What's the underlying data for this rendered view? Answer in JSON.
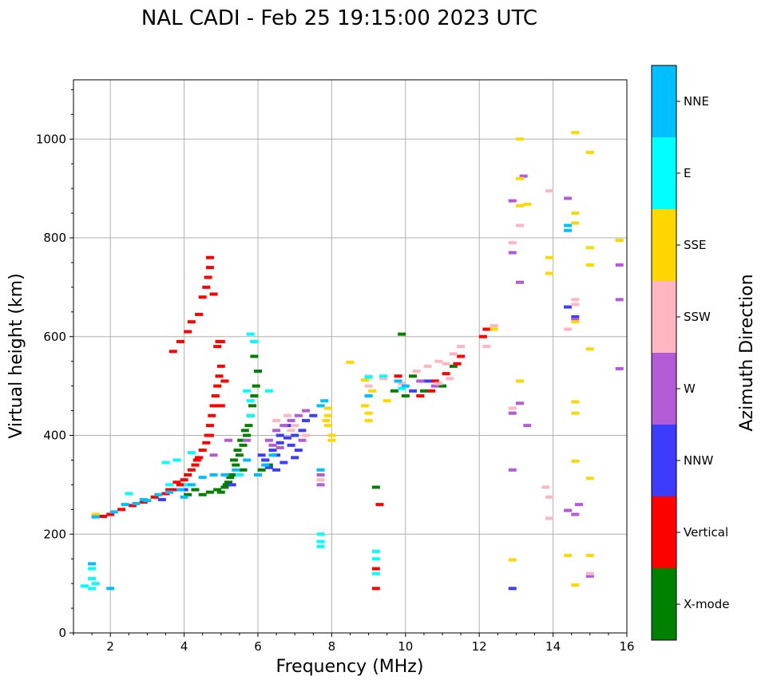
{
  "chart_data": {
    "type": "scatter",
    "title": "NAL CADI - Feb 25 19:15:00 2023 UTC",
    "xlabel": "Frequency (MHz)",
    "ylabel": "Virtual height (km)",
    "xlim": [
      1,
      16
    ],
    "ylim": [
      0,
      1120
    ],
    "xticks": [
      "2",
      "4",
      "6",
      "8",
      "10",
      "12",
      "14",
      "16"
    ],
    "xtick_values": [
      2,
      4,
      6,
      8,
      10,
      12,
      14,
      16
    ],
    "yticks": [
      "0",
      "200",
      "400",
      "600",
      "800",
      "1000"
    ],
    "ytick_values": [
      0,
      200,
      400,
      600,
      800,
      1000
    ],
    "grid": true,
    "colorbar": {
      "label": "Azimuth Direction",
      "categories": [
        "X-mode",
        "Vertical",
        "NNW",
        "W",
        "SSW",
        "SSE",
        "E",
        "NNE"
      ],
      "colors": [
        "#008000",
        "#ff0000",
        "#3c3cff",
        "#b35ad6",
        "#ffb6c1",
        "#ffd700",
        "#00ffff",
        "#00bfff"
      ]
    },
    "series": [
      {
        "name": "X-mode",
        "points": [
          [
            5.0,
            285
          ],
          [
            5.1,
            295
          ],
          [
            5.2,
            305
          ],
          [
            5.3,
            320
          ],
          [
            5.4,
            340
          ],
          [
            5.5,
            360
          ],
          [
            5.6,
            380
          ],
          [
            5.7,
            400
          ],
          [
            5.75,
            420
          ],
          [
            5.8,
            440
          ],
          [
            5.85,
            460
          ],
          [
            5.9,
            480
          ],
          [
            5.95,
            500
          ],
          [
            6.0,
            530
          ],
          [
            5.9,
            560
          ],
          [
            5.9,
            590
          ],
          [
            4.5,
            280
          ],
          [
            4.7,
            285
          ],
          [
            4.9,
            290
          ],
          [
            5.6,
            330
          ],
          [
            6.0,
            320
          ],
          [
            6.1,
            330
          ],
          [
            5.35,
            350
          ],
          [
            5.45,
            370
          ],
          [
            5.55,
            390
          ],
          [
            5.65,
            410
          ],
          [
            10.0,
            480
          ],
          [
            10.2,
            520
          ],
          [
            10.5,
            490
          ],
          [
            11.0,
            500
          ],
          [
            11.3,
            540
          ],
          [
            9.7,
            490
          ],
          [
            9.2,
            295
          ],
          [
            6.2,
            350
          ],
          [
            6.3,
            340
          ],
          [
            5.25,
            315
          ],
          [
            5.15,
            300
          ],
          [
            9.9,
            605
          ],
          [
            4.3,
            290
          ],
          [
            4.1,
            280
          ]
        ]
      },
      {
        "name": "Vertical",
        "points": [
          [
            1.6,
            235
          ],
          [
            1.8,
            236
          ],
          [
            2.0,
            240
          ],
          [
            2.3,
            250
          ],
          [
            2.6,
            258
          ],
          [
            2.9,
            265
          ],
          [
            3.2,
            275
          ],
          [
            3.5,
            282
          ],
          [
            3.7,
            290
          ],
          [
            3.9,
            300
          ],
          [
            4.0,
            310
          ],
          [
            4.1,
            320
          ],
          [
            4.2,
            330
          ],
          [
            4.3,
            340
          ],
          [
            4.4,
            355
          ],
          [
            4.5,
            370
          ],
          [
            4.6,
            385
          ],
          [
            4.65,
            400
          ],
          [
            4.7,
            420
          ],
          [
            4.75,
            440
          ],
          [
            4.8,
            460
          ],
          [
            4.85,
            480
          ],
          [
            4.9,
            500
          ],
          [
            4.95,
            520
          ],
          [
            5.0,
            540
          ],
          [
            4.9,
            580
          ],
          [
            4.95,
            590
          ],
          [
            4.1,
            610
          ],
          [
            4.2,
            630
          ],
          [
            3.9,
            590
          ],
          [
            3.7,
            570
          ],
          [
            4.5,
            680
          ],
          [
            4.6,
            700
          ],
          [
            4.65,
            720
          ],
          [
            4.7,
            740
          ],
          [
            4.7,
            760
          ],
          [
            4.4,
            645
          ],
          [
            4.8,
            686
          ],
          [
            5.0,
            590
          ],
          [
            5.1,
            510
          ],
          [
            5.0,
            460
          ],
          [
            4.7,
            400
          ],
          [
            4.35,
            350
          ],
          [
            3.8,
            305
          ],
          [
            3.6,
            290
          ],
          [
            10.4,
            480
          ],
          [
            10.8,
            510
          ],
          [
            11.1,
            525
          ],
          [
            11.4,
            545
          ],
          [
            11.5,
            560
          ],
          [
            10.7,
            490
          ],
          [
            9.2,
            90
          ],
          [
            9.2,
            130
          ],
          [
            9.3,
            260
          ],
          [
            12.1,
            600
          ],
          [
            12.2,
            615
          ],
          [
            9.8,
            520
          ]
        ]
      },
      {
        "name": "NNW",
        "points": [
          [
            6.2,
            350
          ],
          [
            6.4,
            370
          ],
          [
            6.6,
            385
          ],
          [
            6.8,
            395
          ],
          [
            7.0,
            400
          ],
          [
            7.2,
            410
          ],
          [
            6.5,
            360
          ],
          [
            6.7,
            345
          ],
          [
            6.9,
            380
          ],
          [
            7.1,
            370
          ],
          [
            6.3,
            335
          ],
          [
            6.6,
            400
          ],
          [
            6.8,
            420
          ],
          [
            7.3,
            430
          ],
          [
            6.1,
            360
          ],
          [
            6.5,
            330
          ],
          [
            7.0,
            355
          ],
          [
            7.5,
            440
          ],
          [
            10.2,
            490
          ],
          [
            10.6,
            510
          ],
          [
            12.9,
            90
          ],
          [
            14.4,
            660
          ],
          [
            14.6,
            640
          ],
          [
            5.3,
            300
          ],
          [
            4.0,
            290
          ],
          [
            3.4,
            270
          ]
        ]
      },
      {
        "name": "W",
        "points": [
          [
            6.3,
            390
          ],
          [
            6.5,
            410
          ],
          [
            6.7,
            420
          ],
          [
            6.9,
            430
          ],
          [
            7.1,
            440
          ],
          [
            7.3,
            450
          ],
          [
            6.4,
            380
          ],
          [
            6.6,
            375
          ],
          [
            7.2,
            390
          ],
          [
            7.7,
            300
          ],
          [
            7.7,
            320
          ],
          [
            10.4,
            510
          ],
          [
            10.8,
            500
          ],
          [
            12.9,
            445
          ],
          [
            12.9,
            875
          ],
          [
            13.1,
            710
          ],
          [
            13.3,
            420
          ],
          [
            13.2,
            925
          ],
          [
            14.4,
            880
          ],
          [
            14.7,
            260
          ],
          [
            14.6,
            635
          ],
          [
            15.0,
            115
          ],
          [
            15.8,
            745
          ],
          [
            15.8,
            675
          ],
          [
            15.8,
            535
          ],
          [
            12.9,
            330
          ],
          [
            12.9,
            770
          ],
          [
            13.1,
            465
          ],
          [
            14.4,
            248
          ],
          [
            14.6,
            240
          ],
          [
            5.7,
            390
          ],
          [
            5.2,
            390
          ],
          [
            4.8,
            360
          ]
        ]
      },
      {
        "name": "SSW",
        "points": [
          [
            6.5,
            430
          ],
          [
            6.8,
            440
          ],
          [
            7.0,
            420
          ],
          [
            6.9,
            410
          ],
          [
            7.3,
            400
          ],
          [
            7.7,
            310
          ],
          [
            9.0,
            500
          ],
          [
            9.0,
            520
          ],
          [
            9.4,
            515
          ],
          [
            9.9,
            505
          ],
          [
            10.3,
            530
          ],
          [
            10.6,
            540
          ],
          [
            10.9,
            550
          ],
          [
            11.1,
            545
          ],
          [
            11.3,
            565
          ],
          [
            11.5,
            580
          ],
          [
            10.9,
            505
          ],
          [
            11.2,
            515
          ],
          [
            12.9,
            455
          ],
          [
            12.9,
            790
          ],
          [
            13.1,
            825
          ],
          [
            13.9,
            895
          ],
          [
            13.8,
            295
          ],
          [
            13.9,
            275
          ],
          [
            13.9,
            232
          ],
          [
            14.4,
            615
          ],
          [
            14.6,
            675
          ],
          [
            14.6,
            665
          ],
          [
            12.2,
            580
          ],
          [
            12.4,
            622
          ],
          [
            15.8,
            795
          ],
          [
            15.0,
            120
          ]
        ]
      },
      {
        "name": "SSE",
        "points": [
          [
            1.6,
            240
          ],
          [
            7.9,
            420
          ],
          [
            7.9,
            440
          ],
          [
            8.0,
            400
          ],
          [
            8.0,
            390
          ],
          [
            7.9,
            455
          ],
          [
            7.85,
            430
          ],
          [
            8.5,
            548
          ],
          [
            8.9,
            512
          ],
          [
            8.9,
            460
          ],
          [
            9.0,
            480
          ],
          [
            9.1,
            490
          ],
          [
            9.0,
            430
          ],
          [
            9.0,
            445
          ],
          [
            9.5,
            470
          ],
          [
            12.9,
            148
          ],
          [
            13.1,
            1000
          ],
          [
            13.1,
            920
          ],
          [
            13.1,
            865
          ],
          [
            13.3,
            868
          ],
          [
            13.1,
            510
          ],
          [
            13.9,
            760
          ],
          [
            13.9,
            728
          ],
          [
            14.4,
            157
          ],
          [
            14.6,
            97
          ],
          [
            14.6,
            445
          ],
          [
            14.6,
            468
          ],
          [
            14.6,
            630
          ],
          [
            14.6,
            850
          ],
          [
            14.6,
            830
          ],
          [
            14.6,
            1013
          ],
          [
            14.6,
            348
          ],
          [
            15.0,
            973
          ],
          [
            15.0,
            780
          ],
          [
            15.0,
            745
          ],
          [
            15.0,
            575
          ],
          [
            15.0,
            313
          ],
          [
            15.0,
            157
          ],
          [
            15.8,
            795
          ],
          [
            12.4,
            615
          ]
        ]
      },
      {
        "name": "E",
        "points": [
          [
            1.3,
            95
          ],
          [
            1.5,
            110
          ],
          [
            1.5,
            130
          ],
          [
            1.5,
            90
          ],
          [
            1.6,
            100
          ],
          [
            2.5,
            282
          ],
          [
            3.5,
            345
          ],
          [
            3.8,
            350
          ],
          [
            4.2,
            365
          ],
          [
            5.8,
            605
          ],
          [
            5.9,
            590
          ],
          [
            5.8,
            470
          ],
          [
            5.7,
            490
          ],
          [
            6.3,
            490
          ],
          [
            7.7,
            200
          ],
          [
            7.7,
            185
          ],
          [
            7.7,
            175
          ],
          [
            9.2,
            165
          ],
          [
            9.2,
            150
          ],
          [
            9.2,
            120
          ],
          [
            9.0,
            518
          ],
          [
            9.9,
            495
          ],
          [
            9.4,
            520
          ],
          [
            5.5,
            320
          ],
          [
            5.8,
            440
          ],
          [
            4.1,
            300
          ],
          [
            3.6,
            300
          ]
        ]
      },
      {
        "name": "NNE",
        "points": [
          [
            1.5,
            140
          ],
          [
            1.6,
            235
          ],
          [
            2.1,
            245
          ],
          [
            2.4,
            260
          ],
          [
            2.7,
            262
          ],
          [
            3.0,
            268
          ],
          [
            3.3,
            280
          ],
          [
            3.6,
            285
          ],
          [
            3.9,
            290
          ],
          [
            4.2,
            300
          ],
          [
            4.5,
            315
          ],
          [
            4.8,
            320
          ],
          [
            5.1,
            320
          ],
          [
            5.4,
            330
          ],
          [
            5.7,
            350
          ],
          [
            6.0,
            320
          ],
          [
            6.2,
            340
          ],
          [
            2.0,
            90
          ],
          [
            7.7,
            330
          ],
          [
            7.7,
            460
          ],
          [
            7.8,
            470
          ],
          [
            9.0,
            480
          ],
          [
            9.8,
            510
          ],
          [
            10.0,
            500
          ],
          [
            14.4,
            825
          ],
          [
            14.4,
            815
          ],
          [
            6.4,
            360
          ],
          [
            2.9,
            270
          ],
          [
            4.0,
            275
          ]
        ]
      }
    ]
  }
}
